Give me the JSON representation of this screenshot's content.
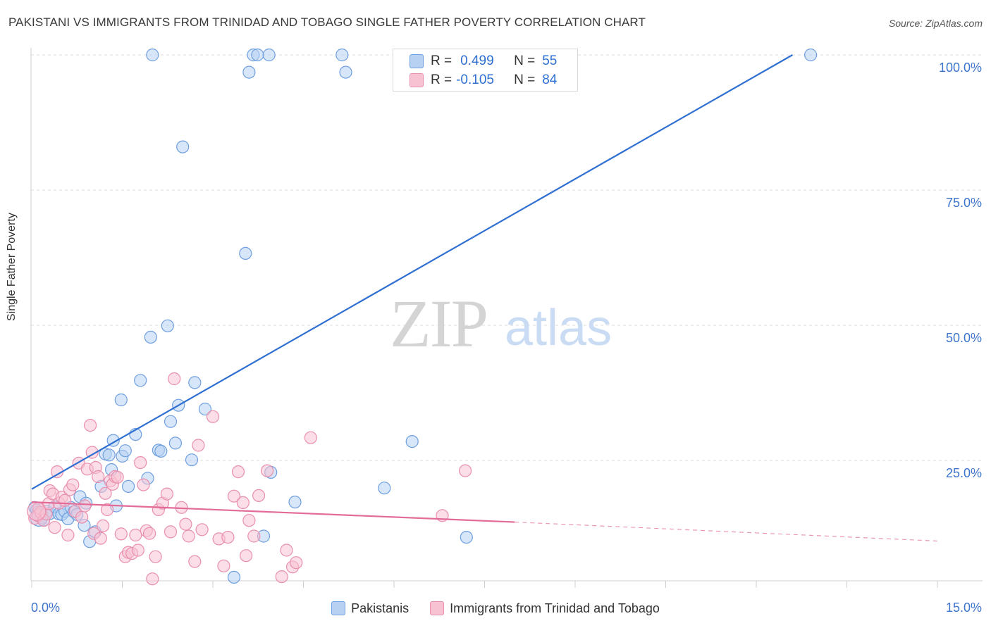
{
  "header": {
    "title": "PAKISTANI VS IMMIGRANTS FROM TRINIDAD AND TOBAGO SINGLE FATHER POVERTY CORRELATION CHART",
    "source": "Source: ZipAtlas.com"
  },
  "watermark": {
    "zip": "ZIP",
    "atlas": "atlas"
  },
  "stats": {
    "r_label": "R =",
    "n_label": "N =",
    "rows": [
      {
        "r": "0.499",
        "n": "55"
      },
      {
        "r": "-0.105",
        "n": "84"
      }
    ]
  },
  "colors": {
    "series1_fill": "#b7d1f3",
    "series1_stroke": "#6f9fe0",
    "series1_line": "#2e6fd1",
    "series2_fill": "#f7c3d3",
    "series2_stroke": "#e98fae",
    "series2_line": "#e36b98",
    "tick_label": "#3d74cc",
    "grid": "#dcdcdc"
  },
  "chart_data": {
    "type": "scatter",
    "title": "PAKISTANI VS IMMIGRANTS FROM TRINIDAD AND TOBAGO SINGLE FATHER POVERTY CORRELATION CHART",
    "xlabel": "",
    "ylabel": "Single Father Poverty",
    "xlim": [
      0,
      15
    ],
    "ylim": [
      0,
      105
    ],
    "x_tick_labels": [
      "0.0%",
      "15.0%"
    ],
    "y_ticks": [
      25,
      50,
      75,
      100
    ],
    "y_tick_labels": [
      "25.0%",
      "50.0%",
      "75.0%",
      "100.0%"
    ],
    "grid": true,
    "legend_position": "bottom",
    "series": [
      {
        "name": "Pakistanis",
        "color": "#6f9fe0",
        "trend": {
          "x": [
            0.0,
            12.6
          ],
          "y": [
            19.7,
            100.0
          ],
          "style": "solid"
        },
        "points": [
          [
            0.05,
            16.3
          ],
          [
            0.08,
            15.8
          ],
          [
            0.1,
            15.4
          ],
          [
            0.12,
            15.0
          ],
          [
            0.15,
            14.4
          ],
          [
            0.17,
            15.1
          ],
          [
            0.2,
            14.0
          ],
          [
            0.25,
            15.6
          ],
          [
            0.3,
            15.2
          ],
          [
            0.38,
            16.4
          ],
          [
            0.45,
            15.1
          ],
          [
            0.5,
            15.0
          ],
          [
            0.55,
            15.6
          ],
          [
            0.6,
            14.2
          ],
          [
            0.65,
            16.3
          ],
          [
            0.7,
            15.5
          ],
          [
            0.75,
            15.0
          ],
          [
            0.8,
            18.3
          ],
          [
            0.87,
            13.0
          ],
          [
            0.9,
            17.1
          ],
          [
            0.96,
            10.0
          ],
          [
            1.05,
            11.8
          ],
          [
            1.15,
            20.2
          ],
          [
            1.22,
            26.2
          ],
          [
            1.28,
            26.0
          ],
          [
            1.32,
            23.3
          ],
          [
            1.35,
            28.7
          ],
          [
            1.4,
            16.6
          ],
          [
            1.48,
            36.2
          ],
          [
            1.5,
            25.8
          ],
          [
            1.55,
            26.8
          ],
          [
            1.6,
            20.2
          ],
          [
            1.72,
            29.8
          ],
          [
            1.8,
            39.8
          ],
          [
            1.92,
            21.7
          ],
          [
            1.97,
            47.8
          ],
          [
            2.0,
            100.0
          ],
          [
            2.1,
            26.9
          ],
          [
            2.14,
            26.7
          ],
          [
            2.25,
            49.9
          ],
          [
            2.3,
            32.2
          ],
          [
            2.38,
            28.2
          ],
          [
            2.43,
            35.2
          ],
          [
            2.5,
            83.0
          ],
          [
            2.65,
            25.1
          ],
          [
            2.7,
            39.4
          ],
          [
            2.87,
            34.5
          ],
          [
            3.35,
            3.4
          ],
          [
            3.54,
            63.3
          ],
          [
            3.6,
            96.8
          ],
          [
            3.67,
            100.0
          ],
          [
            3.74,
            100.0
          ],
          [
            3.84,
            11.0
          ],
          [
            3.93,
            100.0
          ],
          [
            3.96,
            22.8
          ],
          [
            4.36,
            17.3
          ],
          [
            5.14,
            100.0
          ],
          [
            5.2,
            96.8
          ],
          [
            5.84,
            19.9
          ],
          [
            6.3,
            28.5
          ],
          [
            7.2,
            10.8
          ],
          [
            12.9,
            100.0
          ]
        ]
      },
      {
        "name": "Immigrants from Trinidad and Tobago",
        "color": "#e98fae",
        "trend": {
          "x": [
            0.0,
            8.0
          ],
          "y": [
            17.3,
            13.6
          ],
          "style": "solid",
          "dash_to_x": 15.0,
          "dash_to_y": 10.1
        },
        "points": [
          [
            0.05,
            14.3
          ],
          [
            0.1,
            14.8
          ],
          [
            0.12,
            16.2
          ],
          [
            0.15,
            15.4
          ],
          [
            0.2,
            13.9
          ],
          [
            0.24,
            15.1
          ],
          [
            0.28,
            17.0
          ],
          [
            0.3,
            19.4
          ],
          [
            0.35,
            18.8
          ],
          [
            0.38,
            12.6
          ],
          [
            0.42,
            22.9
          ],
          [
            0.45,
            17.1
          ],
          [
            0.5,
            18.2
          ],
          [
            0.55,
            17.6
          ],
          [
            0.6,
            11.2
          ],
          [
            0.63,
            19.6
          ],
          [
            0.68,
            20.5
          ],
          [
            0.72,
            15.6
          ],
          [
            0.78,
            24.5
          ],
          [
            0.83,
            14.5
          ],
          [
            0.88,
            16.6
          ],
          [
            0.92,
            23.4
          ],
          [
            0.97,
            31.5
          ],
          [
            1.0,
            26.5
          ],
          [
            1.03,
            11.5
          ],
          [
            1.06,
            23.7
          ],
          [
            1.1,
            22.0
          ],
          [
            1.14,
            10.6
          ],
          [
            1.18,
            12.9
          ],
          [
            1.22,
            18.9
          ],
          [
            1.25,
            15.9
          ],
          [
            1.3,
            21.2
          ],
          [
            1.34,
            20.6
          ],
          [
            1.38,
            22.0
          ],
          [
            1.42,
            21.9
          ],
          [
            1.48,
            11.4
          ],
          [
            1.55,
            7.2
          ],
          [
            1.6,
            8.0
          ],
          [
            1.66,
            7.8
          ],
          [
            1.72,
            11.2
          ],
          [
            1.76,
            8.4
          ],
          [
            1.8,
            24.6
          ],
          [
            1.85,
            20.5
          ],
          [
            1.9,
            12.0
          ],
          [
            1.95,
            11.5
          ],
          [
            2.0,
            3.1
          ],
          [
            2.05,
            7.2
          ],
          [
            2.1,
            15.9
          ],
          [
            2.17,
            17.1
          ],
          [
            2.24,
            18.8
          ],
          [
            2.3,
            11.8
          ],
          [
            2.36,
            40.1
          ],
          [
            2.48,
            16.3
          ],
          [
            2.55,
            13.2
          ],
          [
            2.6,
            11.0
          ],
          [
            2.7,
            6.3
          ],
          [
            2.76,
            27.8
          ],
          [
            2.82,
            12.2
          ],
          [
            3.0,
            33.1
          ],
          [
            3.1,
            10.5
          ],
          [
            3.18,
            5.5
          ],
          [
            3.25,
            10.8
          ],
          [
            3.35,
            18.4
          ],
          [
            3.42,
            22.9
          ],
          [
            3.5,
            17.2
          ],
          [
            3.55,
            7.4
          ],
          [
            3.6,
            13.9
          ],
          [
            3.68,
            11.0
          ],
          [
            3.76,
            18.5
          ],
          [
            3.9,
            23.1
          ],
          [
            4.14,
            3.5
          ],
          [
            4.22,
            8.4
          ],
          [
            4.32,
            5.3
          ],
          [
            4.38,
            6.1
          ],
          [
            4.62,
            29.2
          ],
          [
            6.8,
            14.8
          ],
          [
            7.18,
            23.1
          ]
        ]
      }
    ]
  },
  "legend": {
    "items": [
      {
        "label": "Pakistanis"
      },
      {
        "label": "Immigrants from Trinidad and Tobago"
      }
    ]
  }
}
